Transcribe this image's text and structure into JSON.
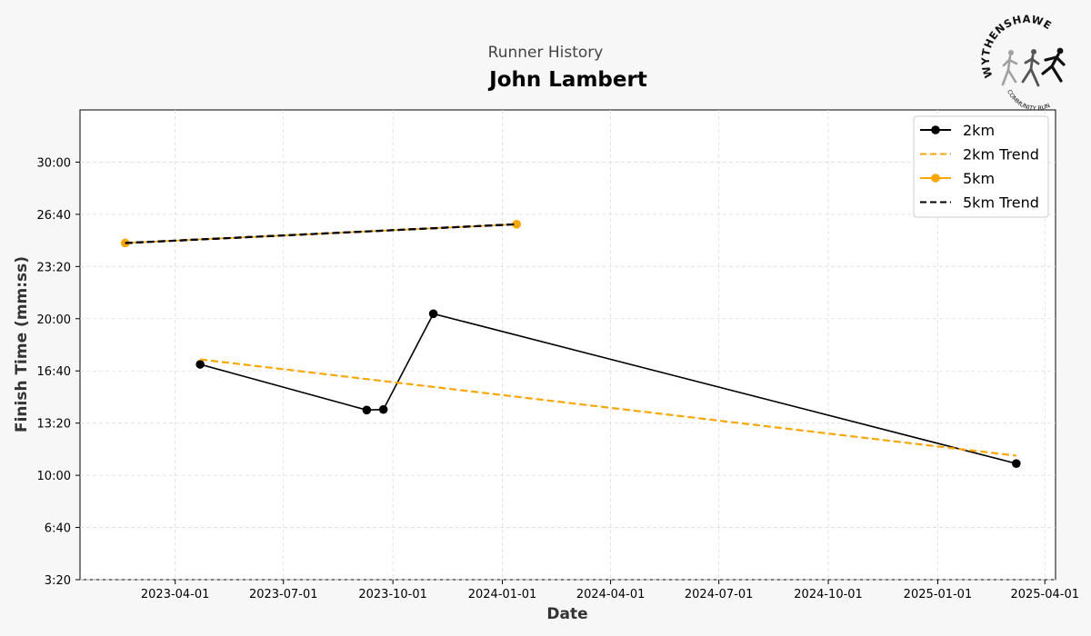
{
  "header": {
    "subtitle": "Runner History",
    "title": "John Lambert"
  },
  "logo": {
    "top_text": "WYTHENSHAWE",
    "bottom_text": "COMMUNITY RUN"
  },
  "colors": {
    "background": "#f7f7f7",
    "series_2km": "#000000",
    "series_5km": "#ffa500",
    "grid": "#dddddd"
  },
  "chart_data": {
    "type": "line",
    "title": "John Lambert",
    "subtitle": "Runner History",
    "xlabel": "Date",
    "ylabel": "Finish Time (mm:ss)",
    "xlim": [
      "2023-01-11",
      "2025-04-10"
    ],
    "ylim": [
      "3:20",
      "33:20"
    ],
    "x_ticks": [
      "2023-04-01",
      "2023-07-01",
      "2023-10-01",
      "2024-01-01",
      "2024-04-01",
      "2024-07-01",
      "2024-10-01",
      "2025-01-01",
      "2025-04-01"
    ],
    "y_ticks": [
      "3:20",
      "6:40",
      "10:00",
      "13:20",
      "16:40",
      "20:00",
      "23:20",
      "26:40",
      "30:00"
    ],
    "grid": true,
    "legend_position": "top-right",
    "series": [
      {
        "name": "2km",
        "style": "solid",
        "markers": true,
        "color": "#000000",
        "points": [
          {
            "x": "2023-04-22",
            "y": "17:05"
          },
          {
            "x": "2023-09-09",
            "y": "14:10"
          },
          {
            "x": "2023-09-23",
            "y": "14:12"
          },
          {
            "x": "2023-11-04",
            "y": "20:19"
          },
          {
            "x": "2025-03-08",
            "y": "10:45"
          }
        ]
      },
      {
        "name": "2km Trend",
        "style": "dashed",
        "markers": false,
        "color": "#ffa500",
        "points": [
          {
            "x": "2023-04-22",
            "y": "17:24"
          },
          {
            "x": "2025-03-08",
            "y": "11:15"
          }
        ]
      },
      {
        "name": "5km",
        "style": "solid",
        "markers": true,
        "color": "#ffa500",
        "points": [
          {
            "x": "2023-02-18",
            "y": "24:50"
          },
          {
            "x": "2024-01-13",
            "y": "26:02"
          }
        ]
      },
      {
        "name": "5km Trend",
        "style": "dashed",
        "markers": false,
        "color": "#000000",
        "points": [
          {
            "x": "2023-02-18",
            "y": "24:50"
          },
          {
            "x": "2024-01-13",
            "y": "26:02"
          }
        ]
      }
    ]
  }
}
